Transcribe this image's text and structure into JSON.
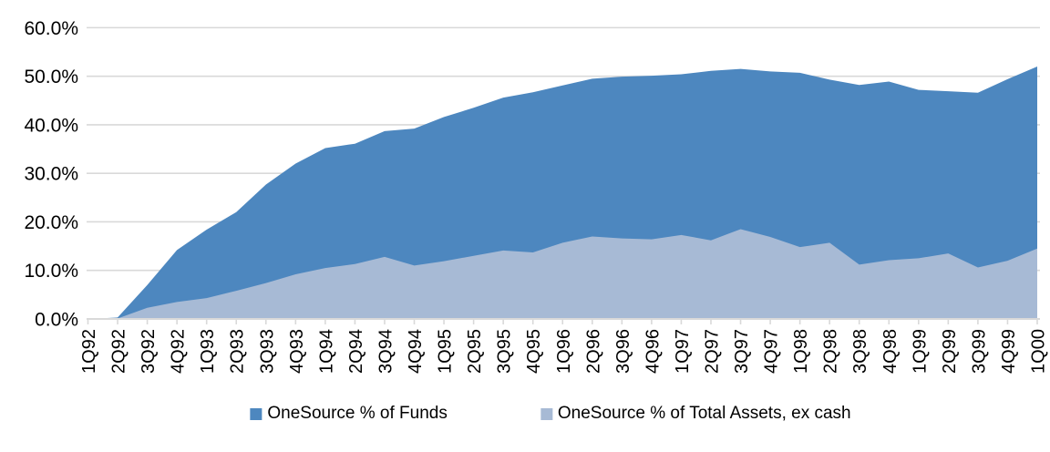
{
  "chart_data": {
    "type": "area",
    "title": "",
    "xlabel": "",
    "ylabel": "",
    "categories": [
      "1Q92",
      "2Q92",
      "3Q92",
      "4Q92",
      "1Q93",
      "2Q93",
      "3Q93",
      "4Q93",
      "1Q94",
      "2Q94",
      "3Q94",
      "4Q94",
      "1Q95",
      "2Q95",
      "3Q95",
      "4Q95",
      "1Q96",
      "2Q96",
      "3Q96",
      "4Q96",
      "1Q97",
      "2Q97",
      "3Q97",
      "4Q97",
      "1Q98",
      "2Q98",
      "3Q98",
      "4Q98",
      "1Q99",
      "2Q99",
      "3Q99",
      "4Q99",
      "1Q00"
    ],
    "series": [
      {
        "name": "OneSource % of Funds",
        "color": "#4d87bf",
        "values": [
          0,
          0.3,
          7,
          14.2,
          18.4,
          22,
          27.7,
          32,
          35.2,
          36.1,
          38.7,
          39.2,
          41.6,
          43.5,
          45.6,
          46.7,
          48.1,
          49.5,
          49.9,
          50.1,
          50.4,
          51.1,
          51.5,
          51,
          50.7,
          49.3,
          48.2,
          48.9,
          47.2,
          46.9,
          46.6,
          49.4,
          52
        ]
      },
      {
        "name": "OneSource % of Total Assets, ex cash",
        "color": "#a7bad5",
        "values": [
          0,
          0.1,
          2.3,
          3.5,
          4.3,
          5.8,
          7.4,
          9.2,
          10.5,
          11.3,
          12.8,
          11,
          11.9,
          13,
          14.1,
          13.7,
          15.7,
          17,
          16.6,
          16.4,
          17.3,
          16.2,
          18.5,
          16.9,
          14.8,
          15.7,
          11.2,
          12.1,
          12.5,
          13.5,
          10.6,
          12,
          14.5
        ]
      }
    ],
    "ylim": [
      0,
      60
    ],
    "yticks": [
      "0.0%",
      "10.0%",
      "20.0%",
      "30.0%",
      "40.0%",
      "50.0%",
      "60.0%"
    ],
    "grid": true,
    "gridline_color": "#d9d9d9",
    "axis_color": "#d9d9d9",
    "text_color": "#000000",
    "legend_position": "bottom"
  }
}
